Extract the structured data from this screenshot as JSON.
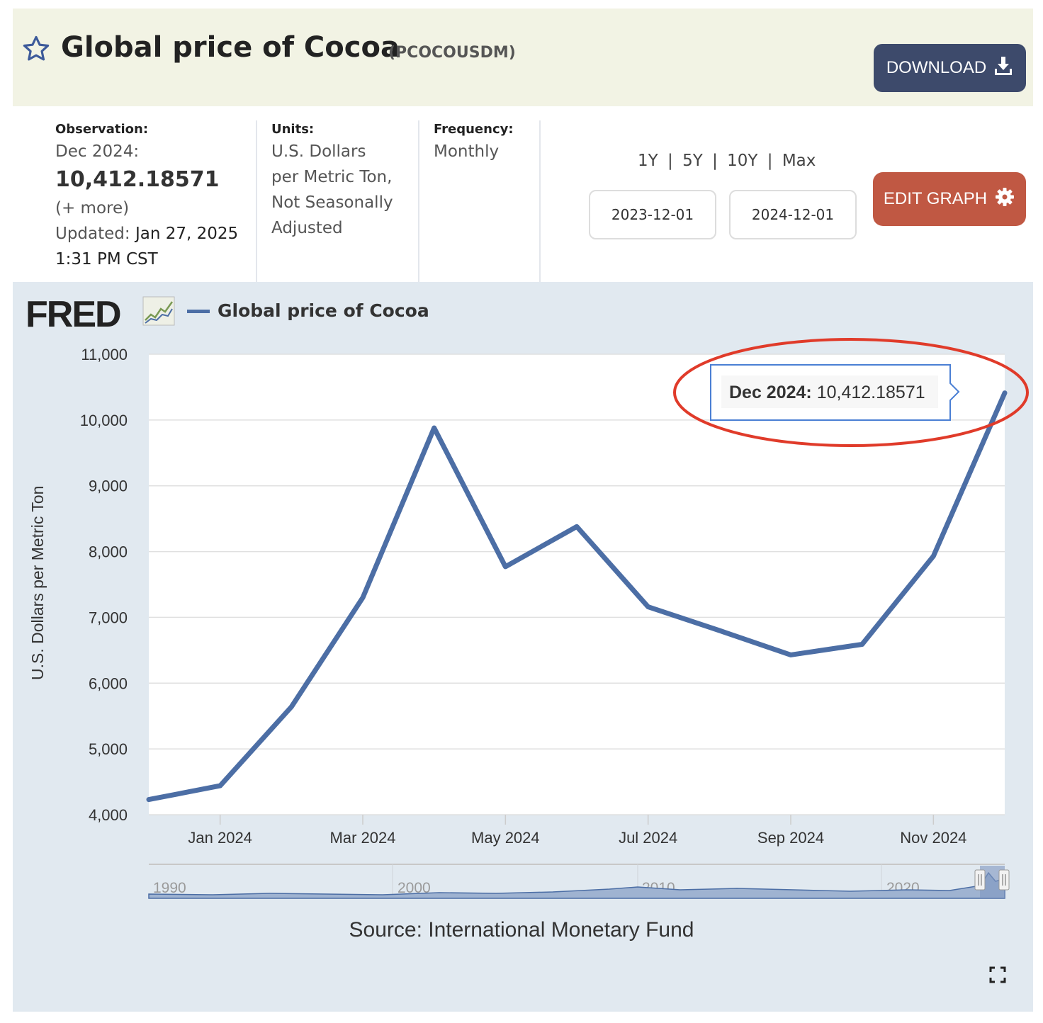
{
  "header": {
    "title": "Global price of Cocoa",
    "series_id": "(PCOCOUSDM)",
    "download_label": "DOWNLOAD"
  },
  "meta": {
    "observation_label": "Observation:",
    "observation_period": "Dec 2024:",
    "observation_value": "10,412.18571",
    "more_label": "(+ more)",
    "updated_label": "Updated:",
    "updated_date": "Jan 27, 2025",
    "updated_time": "1:31 PM CST",
    "units_label": "Units:",
    "units_lines": [
      "U.S. Dollars",
      "per Metric Ton,",
      "Not Seasonally",
      "Adjusted"
    ],
    "frequency_label": "Frequency:",
    "frequency_value": "Monthly"
  },
  "controls": {
    "ranges": [
      "1Y",
      "5Y",
      "10Y",
      "Max"
    ],
    "separator": "|",
    "start_date": "2023-12-01",
    "end_date": "2024-12-01",
    "edit_label": "EDIT GRAPH"
  },
  "chart": {
    "logo": "FRED",
    "source": "Source: International Monetary Fund",
    "tooltip_label": "Dec 2024:",
    "tooltip_value": "10,412.18571",
    "navigator_labels": [
      "1990",
      "2000",
      "2010",
      "2020"
    ],
    "line_color": "#4c6ea5",
    "highlight_color": "#e03b2a"
  },
  "chart_data": {
    "type": "line",
    "ylabel": "U.S. Dollars per Metric Ton",
    "ylim": [
      4000,
      11000
    ],
    "yticks": [
      4000,
      5000,
      6000,
      7000,
      8000,
      9000,
      10000,
      11000
    ],
    "ytick_labels": [
      "4,000",
      "5,000",
      "6,000",
      "7,000",
      "8,000",
      "9,000",
      "10,000",
      "11,000"
    ],
    "xtick_labels": [
      "Jan 2024",
      "Mar 2024",
      "May 2024",
      "Jul 2024",
      "Sep 2024",
      "Nov 2024"
    ],
    "xtick_dates": [
      "2024-01",
      "2024-03",
      "2024-05",
      "2024-07",
      "2024-09",
      "2024-11"
    ],
    "legend": "top-left",
    "grid": true,
    "series": [
      {
        "name": "Global price of Cocoa",
        "x": [
          "2023-12",
          "2024-01",
          "2024-02",
          "2024-03",
          "2024-04",
          "2024-05",
          "2024-06",
          "2024-07",
          "2024-08",
          "2024-09",
          "2024-10",
          "2024-11",
          "2024-12"
        ],
        "y": [
          4230,
          4440,
          5640,
          7300,
          9880,
          7770,
          8380,
          7160,
          6800,
          6430,
          6590,
          7930,
          10412.18571
        ]
      }
    ]
  }
}
